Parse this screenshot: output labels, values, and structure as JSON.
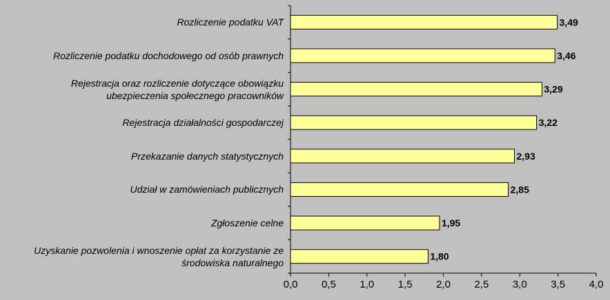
{
  "chart_data": {
    "type": "bar",
    "orientation": "horizontal",
    "title": "",
    "xlabel": "",
    "ylabel": "",
    "xlim": [
      0,
      4
    ],
    "x_ticks": [
      "0,0",
      "0,5",
      "1,0",
      "1,5",
      "2,0",
      "2,5",
      "3,0",
      "3,5",
      "4,0"
    ],
    "grid": false,
    "bar_color": "#ffff99",
    "bar_edge_color": "#000000",
    "background_color": "#c0c0c0",
    "categories": [
      "Rozliczenie podatku VAT",
      "Rozliczenie podatku dochodowego od osób prawnych",
      "Rejestracja oraz rozliczenie dotyczące obowiązku ubezpieczenia społecznego pracowników",
      "Rejestracja działalności gospodarczej",
      "Przekazanie danych statystycznych",
      "Udział w zamówieniach publicznych",
      "Zgłoszenie celne",
      "Uzyskanie pozwolenia i wnoszenie opłat za korzystanie ze środowiska naturalnego"
    ],
    "category_lines": [
      [
        "Rozliczenie podatku VAT"
      ],
      [
        "Rozliczenie podatku dochodowego od osób prawnych"
      ],
      [
        "Rejestracja oraz rozliczenie dotyczące obowiązku",
        "ubezpieczenia społecznego pracowników"
      ],
      [
        "Rejestracja działalności gospodarczej"
      ],
      [
        "Przekazanie danych statystycznych"
      ],
      [
        "Udział w zamówieniach publicznych"
      ],
      [
        "Zgłoszenie celne"
      ],
      [
        "Uzyskanie pozwolenia i wnoszenie opłat za korzystanie ze",
        "środowiska naturalnego"
      ]
    ],
    "values": [
      3.49,
      3.46,
      3.29,
      3.22,
      2.93,
      2.85,
      1.95,
      1.8
    ],
    "value_labels": [
      "3,49",
      "3,46",
      "3,29",
      "3,22",
      "2,93",
      "2,85",
      "1,95",
      "1,80"
    ]
  }
}
